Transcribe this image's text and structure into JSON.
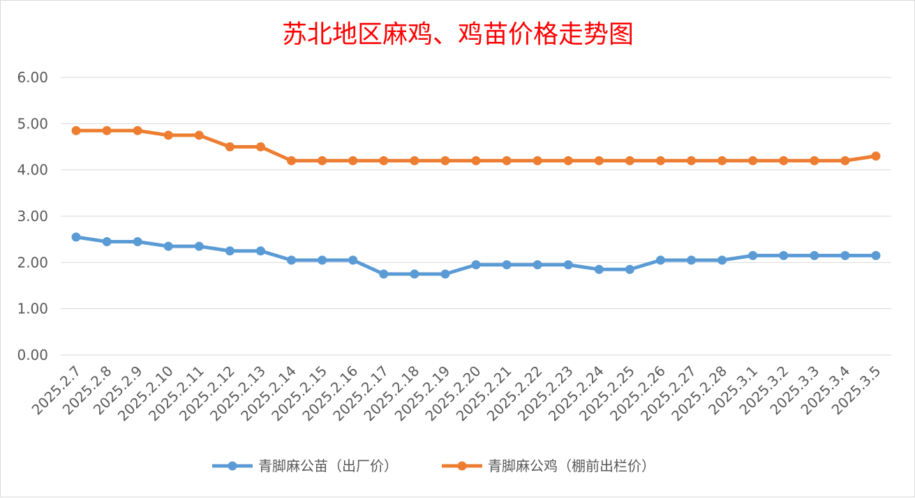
{
  "chart_data": {
    "type": "line",
    "title": "苏北地区麻鸡、鸡苗价格走势图",
    "xlabel": "",
    "ylabel": "",
    "ylim": [
      0,
      6
    ],
    "yticks": [
      "0.00",
      "1.00",
      "2.00",
      "3.00",
      "4.00",
      "5.00",
      "6.00"
    ],
    "grid": true,
    "legend_position": "bottom",
    "categories": [
      "2025.2.7",
      "2025.2.8",
      "2025.2.9",
      "2025.2.10",
      "2025.2.11",
      "2025.2.12",
      "2025.2.13",
      "2025.2.14",
      "2025.2.15",
      "2025.2.16",
      "2025.2.17",
      "2025.2.18",
      "2025.2.19",
      "2025.2.20",
      "2025.2.21",
      "2025.2.22",
      "2025.2.23",
      "2025.2.24",
      "2025.2.25",
      "2025.2.26",
      "2025.2.27",
      "2025.2.28",
      "2025.3.1",
      "2025.3.2",
      "2025.3.3",
      "2025.3.4",
      "2025.3.5"
    ],
    "series": [
      {
        "name": "青脚麻公苗（出厂价）",
        "color": "#5b9bd5",
        "values": [
          2.55,
          2.45,
          2.45,
          2.35,
          2.35,
          2.25,
          2.25,
          2.05,
          2.05,
          2.05,
          1.75,
          1.75,
          1.75,
          1.95,
          1.95,
          1.95,
          1.95,
          1.85,
          1.85,
          2.05,
          2.05,
          2.05,
          2.15,
          2.15,
          2.15,
          2.15,
          2.15
        ]
      },
      {
        "name": "青脚麻公鸡（棚前出栏价）",
        "color": "#ed7d31",
        "values": [
          4.85,
          4.85,
          4.85,
          4.75,
          4.75,
          4.5,
          4.5,
          4.2,
          4.2,
          4.2,
          4.2,
          4.2,
          4.2,
          4.2,
          4.2,
          4.2,
          4.2,
          4.2,
          4.2,
          4.2,
          4.2,
          4.2,
          4.2,
          4.2,
          4.2,
          4.2,
          4.3
        ]
      }
    ]
  }
}
